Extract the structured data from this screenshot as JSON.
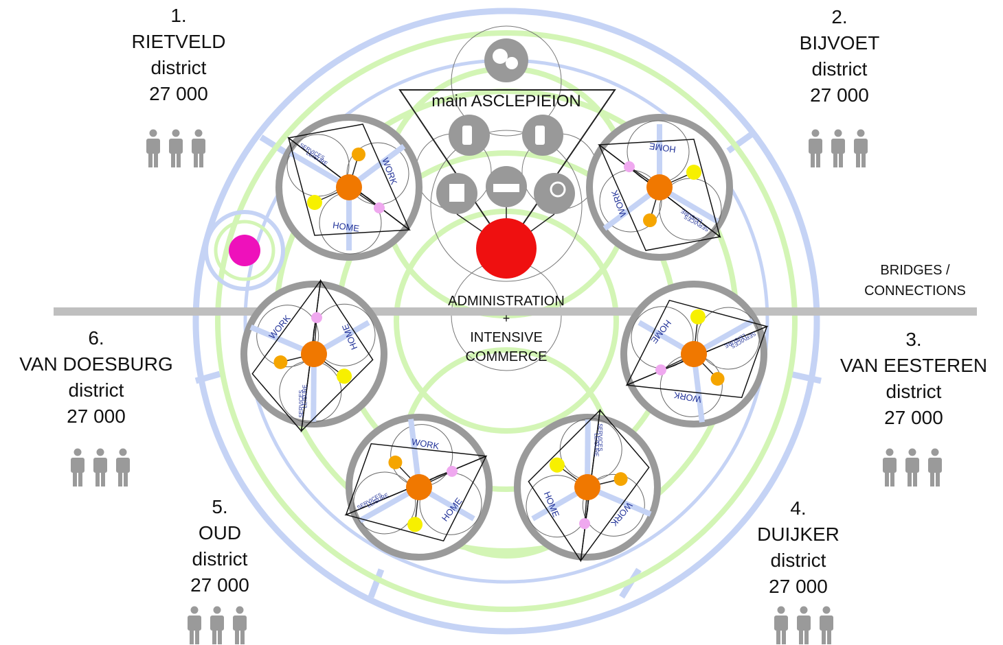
{
  "districts": [
    {
      "number": "1.",
      "name": "RIETVELD",
      "word": "district",
      "population": "27 000"
    },
    {
      "number": "2.",
      "name": "BIJVOET",
      "word": "district",
      "population": "27 000"
    },
    {
      "number": "3.",
      "name": "VAN EESTEREN",
      "word": "district",
      "population": "27 000"
    },
    {
      "number": "4.",
      "name": "DUIJKER",
      "word": "district",
      "population": "27 000"
    },
    {
      "number": "5.",
      "name": "OUD",
      "word": "district",
      "population": "27 000"
    },
    {
      "number": "6.",
      "name": "VAN DOESBURG",
      "word": "district",
      "population": "27 000"
    }
  ],
  "center": {
    "asclepieion": "main ASCLEPIEION",
    "admin_line1": "ADMINISTRATION",
    "admin_plus": "+",
    "admin_line2": "INTENSIVE",
    "admin_line3": "COMMERCE"
  },
  "bridges": {
    "line1": "BRIDGES /",
    "line2": "CONNECTIONS"
  },
  "unit_labels": {
    "home": "HOME",
    "work": "WORK",
    "services": "SERVICES",
    "leisure": "LEISURE"
  },
  "colors": {
    "outer_ring": "#c5d3f5",
    "green_ring": "#d3f5b5",
    "gray_ring": "#9a9a9a",
    "core_orange": "#f07800",
    "node_orange": "#f5a500",
    "node_yellow": "#f7f000",
    "node_pink": "#efa8ef",
    "main_red": "#ef1010",
    "magenta": "#ee11bb",
    "icon_gray": "#999999"
  }
}
